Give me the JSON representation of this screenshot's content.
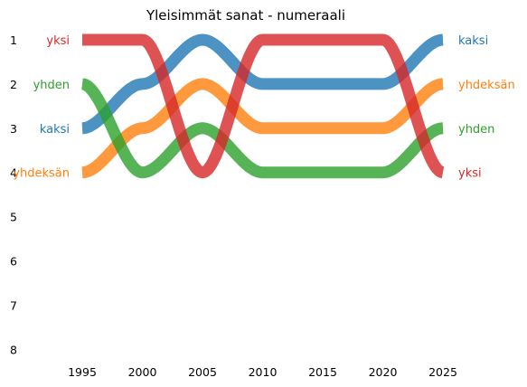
{
  "chart_data": {
    "type": "line",
    "title": "Yleisimmät sanat - numeraali",
    "xlabel": "",
    "ylabel": "",
    "x_ticks": [
      1995,
      2000,
      2005,
      2010,
      2015,
      2020,
      2025
    ],
    "y_ticks": [
      "1",
      "2",
      "3",
      "4",
      "5",
      "6",
      "7",
      "8"
    ],
    "xlim": [
      1991,
      2027
    ],
    "ylim": [
      8.2,
      0.75
    ],
    "y_inverted": true,
    "grid": false,
    "legend": "none (labels at line ends)",
    "x": [
      1995,
      2000,
      2005,
      2010,
      2015,
      2020,
      2025
    ],
    "series": [
      {
        "name": "yksi",
        "color": "#d62728",
        "values": [
          1,
          1,
          4,
          1,
          1,
          1,
          4
        ],
        "start_label": "yksi",
        "end_label": "yksi"
      },
      {
        "name": "kaksi",
        "color": "#1f77b4",
        "values": [
          3,
          2,
          1,
          2,
          2,
          2,
          1
        ],
        "start_label": "kaksi",
        "end_label": "kaksi"
      },
      {
        "name": "yhdeksän",
        "color": "#ff7f0e",
        "values": [
          4,
          3,
          2,
          3,
          3,
          3,
          2
        ],
        "start_label": "yhdeksän",
        "end_label": "yhdeksän"
      },
      {
        "name": "yhden",
        "color": "#2ca02c",
        "values": [
          2,
          4,
          3,
          4,
          4,
          4,
          3
        ],
        "start_label": "yhden",
        "end_label": "yhden"
      }
    ]
  }
}
